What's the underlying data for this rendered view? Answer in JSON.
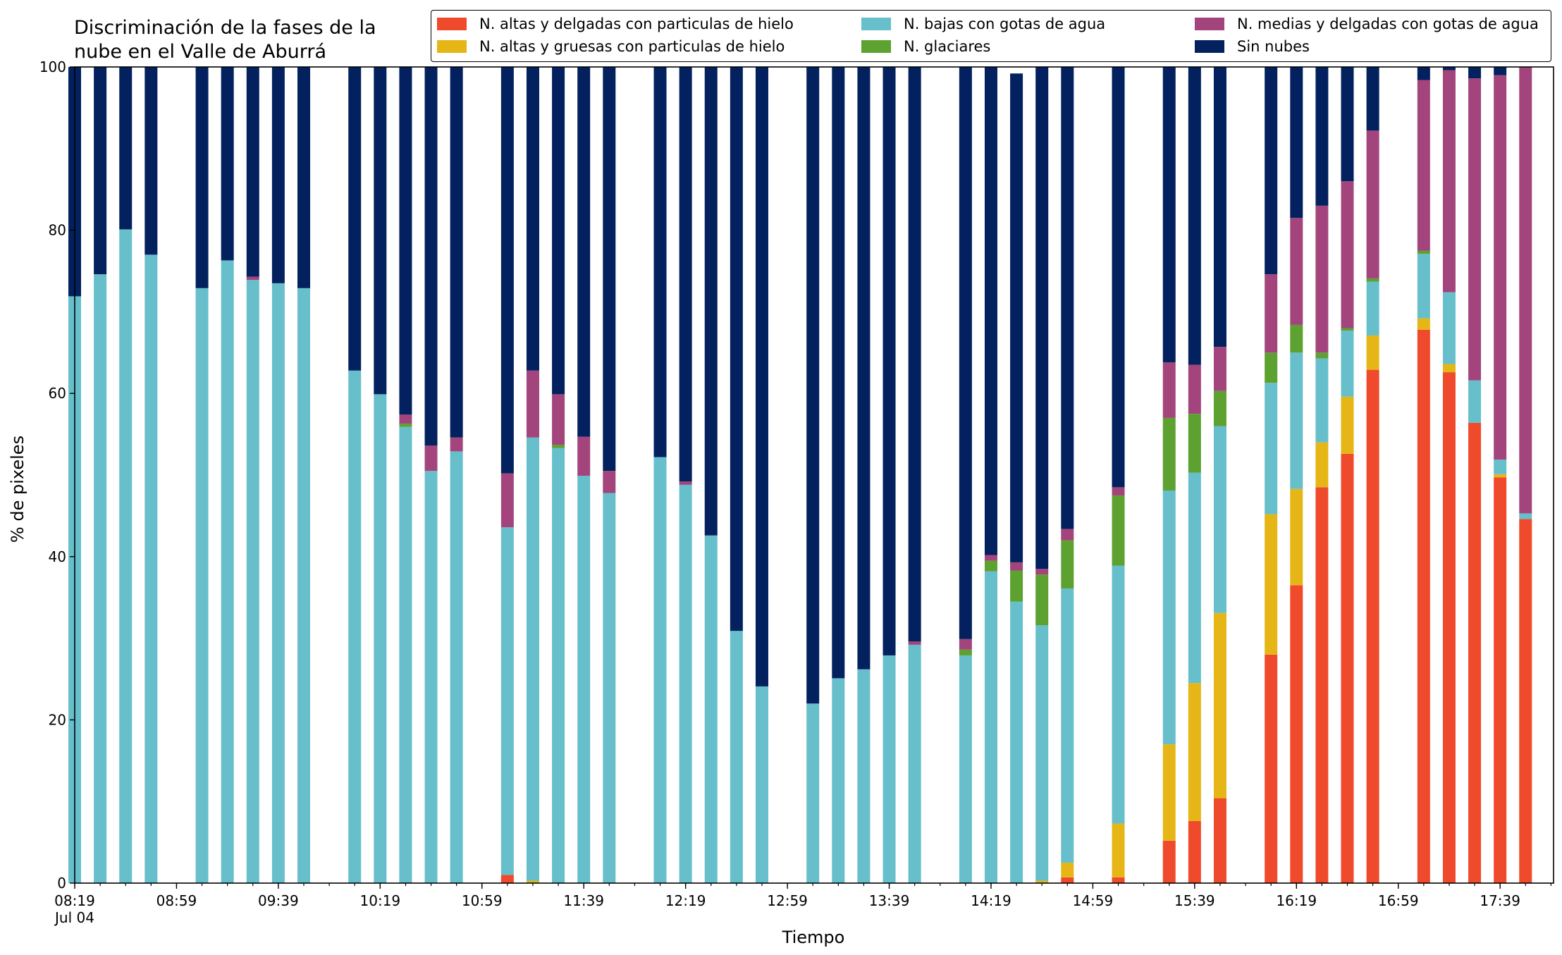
{
  "chart_data": {
    "type": "bar",
    "stacked": true,
    "title_lines": [
      "Discriminación de la fases de la",
      "nube en el Valle de Aburrá"
    ],
    "xlabel": "Tiempo",
    "ylabel": "% de pixeles",
    "ylim": [
      0,
      100
    ],
    "yticks": [
      0,
      20,
      40,
      60,
      80,
      100
    ],
    "xtick_labels": [
      "08:19",
      "08:59",
      "09:39",
      "10:19",
      "10:59",
      "11:39",
      "12:19",
      "12:59",
      "13:39",
      "14:19",
      "14:59",
      "15:39",
      "16:19",
      "16:59",
      "17:39"
    ],
    "xtick_sublabel": "Jul 04",
    "x_range": [
      "08:19",
      "18:00"
    ],
    "bar_interval_minutes": 10,
    "legend_position": "top-right",
    "grid": false,
    "x": [
      "08:19",
      "08:29",
      "08:39",
      "08:49",
      "09:09",
      "09:19",
      "09:29",
      "09:39",
      "09:49",
      "10:09",
      "10:19",
      "10:29",
      "10:39",
      "10:49",
      "11:09",
      "11:19",
      "11:29",
      "11:39",
      "11:49",
      "12:09",
      "12:19",
      "12:29",
      "12:39",
      "12:49",
      "13:09",
      "13:19",
      "13:29",
      "13:39",
      "13:49",
      "14:09",
      "14:19",
      "14:29",
      "14:39",
      "14:49",
      "15:09",
      "15:29",
      "15:39",
      "15:49",
      "16:09",
      "16:19",
      "16:29",
      "16:39",
      "16:49",
      "17:09",
      "17:19",
      "17:29",
      "17:39",
      "17:49"
    ],
    "series": [
      {
        "name": "N. altas y delgadas con particulas de hielo",
        "color": "#ef4a2c",
        "values": [
          0,
          0,
          0,
          0,
          0,
          0,
          0,
          0,
          0,
          0,
          0,
          0,
          0,
          0,
          1.0,
          0,
          0,
          0,
          0,
          0,
          0,
          0,
          0,
          0,
          0,
          0,
          0,
          0,
          0,
          0,
          0,
          0,
          0,
          0.7,
          0.7,
          5.2,
          7.6,
          10.4,
          28.0,
          36.5,
          48.5,
          52.6,
          62.9,
          67.8,
          62.6,
          56.4,
          49.7,
          44.6
        ]
      },
      {
        "name": "N. altas y gruesas con particulas de hielo",
        "color": "#e5b616",
        "values": [
          0,
          0,
          0,
          0,
          0,
          0,
          0,
          0,
          0,
          0,
          0,
          0,
          0,
          0,
          0,
          0.3,
          0,
          0,
          0,
          0,
          0,
          0,
          0,
          0,
          0,
          0,
          0,
          0,
          0,
          0,
          0,
          0,
          0.3,
          1.8,
          6.6,
          11.8,
          16.9,
          22.7,
          17.2,
          11.8,
          5.5,
          7.0,
          4.2,
          1.4,
          1.0,
          0,
          0.4,
          0
        ]
      },
      {
        "name": "N. bajas con gotas de agua",
        "color": "#67bfcb",
        "values": [
          71.9,
          74.6,
          80.1,
          77.0,
          72.9,
          76.3,
          73.9,
          73.5,
          72.9,
          62.8,
          59.9,
          55.9,
          50.5,
          52.9,
          42.6,
          54.3,
          53.3,
          49.9,
          47.8,
          52.2,
          48.8,
          42.6,
          30.9,
          24.1,
          22.0,
          25.1,
          26.2,
          27.9,
          29.2,
          27.9,
          38.2,
          34.5,
          31.3,
          33.6,
          31.6,
          31.1,
          25.8,
          22.9,
          16.1,
          16.7,
          10.3,
          8.1,
          6.6,
          7.9,
          8.8,
          5.2,
          1.8,
          0.7
        ]
      },
      {
        "name": "N. glaciares",
        "color": "#5da130",
        "values": [
          0,
          0,
          0,
          0,
          0,
          0,
          0,
          0,
          0,
          0,
          0,
          0.4,
          0,
          0,
          0,
          0,
          0.4,
          0,
          0,
          0,
          0,
          0,
          0,
          0,
          0,
          0,
          0,
          0,
          0,
          0.7,
          1.3,
          3.8,
          6.2,
          5.9,
          8.6,
          8.9,
          7.2,
          4.3,
          3.7,
          3.4,
          0.7,
          0.3,
          0.4,
          0.4,
          0,
          0,
          0,
          0
        ]
      },
      {
        "name": "N. medias y delgadas con gotas de agua",
        "color": "#a3457c",
        "values": [
          0,
          0,
          0,
          0,
          0,
          0,
          0.4,
          0,
          0,
          0,
          0,
          1.1,
          3.1,
          1.7,
          6.6,
          8.2,
          6.2,
          4.8,
          2.7,
          0,
          0.4,
          0,
          0,
          0,
          0,
          0,
          0,
          0,
          0.4,
          1.3,
          0.7,
          1.0,
          0.7,
          1.4,
          1.0,
          6.8,
          6.0,
          5.4,
          9.6,
          13.1,
          18.0,
          18.0,
          18.1,
          20.9,
          27.2,
          37.0,
          47.1,
          54.7
        ]
      },
      {
        "name": "Sin nubes",
        "color": "#03215e",
        "values": [
          28.1,
          25.4,
          19.9,
          23.0,
          27.1,
          23.7,
          25.7,
          26.5,
          27.1,
          37.2,
          40.1,
          42.6,
          46.4,
          45.4,
          49.8,
          37.2,
          40.1,
          45.3,
          49.5,
          47.8,
          50.8,
          57.4,
          69.1,
          75.9,
          78.0,
          74.9,
          73.8,
          72.1,
          70.4,
          70.1,
          59.8,
          59.9,
          61.5,
          56.6,
          51.5,
          36.2,
          36.5,
          34.3,
          25.4,
          18.5,
          17.0,
          14.0,
          7.8,
          1.6,
          0.4,
          1.4,
          1.0,
          0
        ]
      }
    ]
  }
}
